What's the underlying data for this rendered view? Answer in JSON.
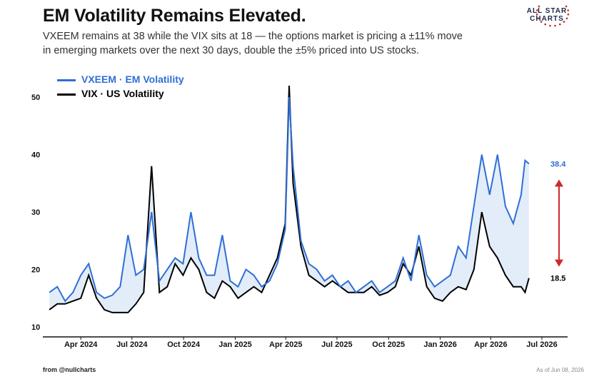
{
  "header": {
    "title": "EM Volatility Remains Elevated.",
    "subtitle": "VXEEM remains at 38 while the VIX sits at 18 — the options market is pricing a ±11% move in emerging markets over the next 30 days, double the ±5% priced into US stocks."
  },
  "logo": {
    "line1": "ALL STAR",
    "line2": "CHARTS"
  },
  "footer": {
    "source": "from  @nullcharts",
    "asof": "As of Jun 08, 2026"
  },
  "colors": {
    "vxeem": "#2f6fd6",
    "vix": "#000000",
    "fill": "#dce8f8",
    "arrow": "#cc2a2a",
    "logo_star": "#c62828"
  },
  "chart_data": {
    "type": "line",
    "ylim": [
      10,
      53
    ],
    "y_ticks": [
      10,
      20,
      30,
      40,
      50
    ],
    "x_range": [
      "2024-02-01",
      "2026-07-15"
    ],
    "x_ticks": [
      {
        "label": "Apr 2024",
        "date": "2024-04-01"
      },
      {
        "label": "Jul 2024",
        "date": "2024-07-01"
      },
      {
        "label": "Oct 2024",
        "date": "2024-10-01"
      },
      {
        "label": "Jan 2025",
        "date": "2025-01-01"
      },
      {
        "label": "Apr 2025",
        "date": "2025-04-01"
      },
      {
        "label": "Jul 2025",
        "date": "2025-07-01"
      },
      {
        "label": "Oct 2025",
        "date": "2025-10-01"
      },
      {
        "label": "Jan 2026",
        "date": "2026-01-01"
      },
      {
        "label": "Apr 2026",
        "date": "2026-04-01"
      },
      {
        "label": "Jul 2026",
        "date": "2026-07-01"
      }
    ],
    "x": [
      "2024-02-05",
      "2024-02-19",
      "2024-03-04",
      "2024-03-18",
      "2024-04-01",
      "2024-04-15",
      "2024-04-29",
      "2024-05-13",
      "2024-05-27",
      "2024-06-10",
      "2024-06-24",
      "2024-07-08",
      "2024-07-22",
      "2024-08-05",
      "2024-08-19",
      "2024-09-02",
      "2024-09-16",
      "2024-09-30",
      "2024-10-14",
      "2024-10-28",
      "2024-11-11",
      "2024-11-25",
      "2024-12-09",
      "2024-12-23",
      "2025-01-06",
      "2025-01-20",
      "2025-02-03",
      "2025-02-17",
      "2025-03-03",
      "2025-03-17",
      "2025-03-31",
      "2025-04-07",
      "2025-04-14",
      "2025-04-28",
      "2025-05-12",
      "2025-05-26",
      "2025-06-09",
      "2025-06-23",
      "2025-07-07",
      "2025-07-21",
      "2025-08-04",
      "2025-08-18",
      "2025-09-01",
      "2025-09-15",
      "2025-09-29",
      "2025-10-13",
      "2025-10-27",
      "2025-11-10",
      "2025-11-24",
      "2025-12-08",
      "2025-12-22",
      "2026-01-05",
      "2026-01-19",
      "2026-02-02",
      "2026-02-16",
      "2026-03-02",
      "2026-03-16",
      "2026-03-30",
      "2026-04-13",
      "2026-04-27",
      "2026-05-11",
      "2026-05-25",
      "2026-06-01",
      "2026-06-08"
    ],
    "series": [
      {
        "name": "VXEEM · EM Volatility",
        "color": "#2f6fd6",
        "values": [
          16,
          17,
          14.5,
          16,
          19,
          21,
          16,
          15,
          15.5,
          17,
          26,
          19,
          20,
          30,
          18,
          20,
          22,
          21,
          30,
          22,
          19,
          19,
          26,
          18,
          17,
          20,
          19,
          17,
          18,
          21,
          27,
          50,
          38,
          25,
          21,
          20,
          18,
          19,
          17,
          18,
          16,
          17,
          18,
          16,
          17,
          18,
          22,
          18,
          26,
          19,
          17,
          18,
          19,
          24,
          22,
          31,
          40,
          33,
          40,
          31,
          28,
          33,
          39,
          38.4
        ]
      },
      {
        "name": "VIX · US Volatility",
        "color": "#000000",
        "values": [
          13,
          14,
          14,
          14.5,
          15,
          19,
          15,
          13,
          12.5,
          12.5,
          12.5,
          14,
          16,
          38,
          16,
          17,
          21,
          19,
          22,
          20,
          16,
          15,
          18,
          17,
          15,
          16,
          17,
          16,
          19,
          22,
          28,
          52,
          35,
          24,
          19,
          18,
          17,
          18,
          17,
          16,
          16,
          16,
          17,
          15.5,
          16,
          17,
          21,
          19,
          24,
          17,
          15,
          14.5,
          16,
          17,
          16.5,
          20,
          30,
          24,
          22,
          19,
          17,
          17,
          16,
          18.5
        ]
      }
    ],
    "last_labels": {
      "vxeem": "38.4",
      "vix": "18.5"
    }
  }
}
